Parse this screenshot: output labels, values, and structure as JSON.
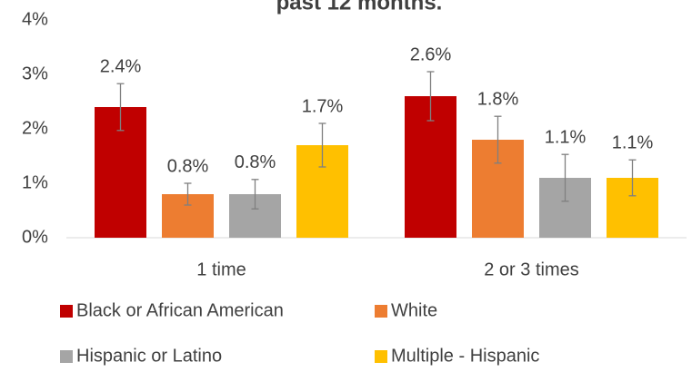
{
  "chart_data": {
    "type": "bar",
    "title": "past 12 months.",
    "categories": [
      "1 time",
      "2 or 3 times"
    ],
    "series": [
      {
        "name": "Black or African American",
        "color": "#c00000",
        "values": [
          2.4,
          2.6
        ],
        "value_labels": [
          "2.4%",
          "2.6%"
        ],
        "errors": [
          0.43,
          0.45
        ]
      },
      {
        "name": "White",
        "color": "#ed7d31",
        "values": [
          0.8,
          1.8
        ],
        "value_labels": [
          "0.8%",
          "1.8%"
        ],
        "errors": [
          0.2,
          0.43
        ]
      },
      {
        "name": "Hispanic or Latino",
        "color": "#a5a5a5",
        "values": [
          0.8,
          1.1
        ],
        "value_labels": [
          "0.8%",
          "1.1%"
        ],
        "errors": [
          0.27,
          0.43
        ]
      },
      {
        "name": "Multiple - Hispanic",
        "color": "#ffc000",
        "values": [
          1.7,
          1.1
        ],
        "value_labels": [
          "1.7%",
          "1.1%"
        ],
        "errors": [
          0.4,
          0.33
        ]
      }
    ],
    "ylim": [
      0,
      4
    ],
    "yticks": [
      {
        "value": 0,
        "label": "0%"
      },
      {
        "value": 1,
        "label": "1%"
      },
      {
        "value": 2,
        "label": "2%"
      },
      {
        "value": 3,
        "label": "3%"
      },
      {
        "value": 4,
        "label": "4%"
      }
    ],
    "grid": false,
    "error_color": "#7f7f7f"
  }
}
